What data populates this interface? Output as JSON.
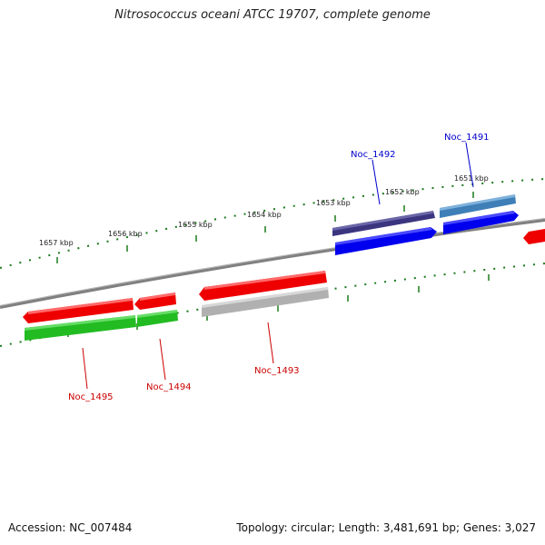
{
  "title": "Nitrosococcus oceani ATCC 19707, complete genome",
  "footer": {
    "accession": "Accession: NC_007484",
    "summary": "Topology: circular; Length: 3,481,691 bp; Genes: 3,027"
  },
  "scale_labels": [
    "1651 kbp",
    "1652 kbp",
    "1653 kbp",
    "1654 kbp",
    "1655 kbp",
    "1656 kbp",
    "1657 kbp"
  ],
  "gene_labels": [
    {
      "text": "Noc_1491",
      "color": "#0000cc"
    },
    {
      "text": "Noc_1492",
      "color": "#0000cc"
    },
    {
      "text": "Noc_1493",
      "color": "#cc0000"
    },
    {
      "text": "Noc_1494",
      "color": "#cc0000"
    },
    {
      "text": "Noc_1495",
      "color": "#cc0000"
    }
  ],
  "colors": {
    "forward_gene": "#0000ee",
    "forward_cds_1492": "#3b3580",
    "forward_cds_1491": "#3f7fb8",
    "reverse_gene": "#ee0000",
    "reverse_cds": "#22bb22",
    "reverse_cds_gray": "#b0b0b0",
    "backbone": "#888888",
    "ticks": "#1a7a1a"
  }
}
